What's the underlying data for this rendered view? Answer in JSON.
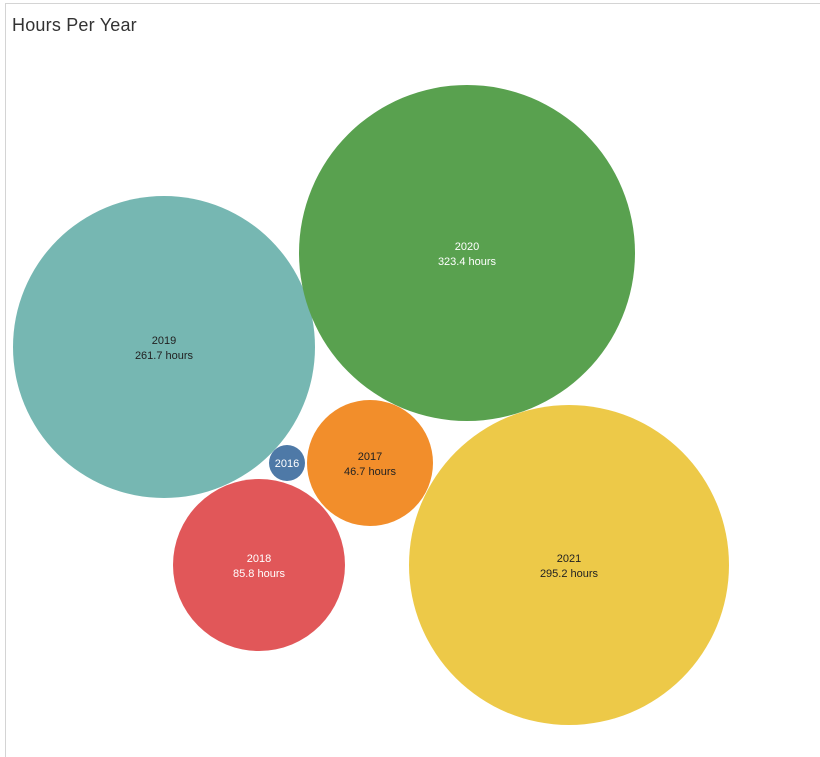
{
  "chart_data": {
    "type": "bubble",
    "title": "Hours Per Year",
    "unit_label": "hours",
    "bubbles": [
      {
        "category": "2016",
        "value": 5.0,
        "color": "#4e79a7",
        "label_color": "#ffffff",
        "value_label": ""
      },
      {
        "category": "2017",
        "value": 46.7,
        "color": "#f28e2b",
        "label_color": "#222222",
        "value_label": "46.7 hours"
      },
      {
        "category": "2018",
        "value": 85.8,
        "color": "#e15759",
        "label_color": "#ffffff",
        "value_label": "85.8 hours"
      },
      {
        "category": "2019",
        "value": 261.7,
        "color": "#76b7b2",
        "label_color": "#222222",
        "value_label": "261.7 hours"
      },
      {
        "category": "2020",
        "value": 323.4,
        "color": "#59a14f",
        "label_color": "#ffffff",
        "value_label": "323.4 hours"
      },
      {
        "category": "2021",
        "value": 295.2,
        "color": "#edc948",
        "label_color": "#222222",
        "value_label": "295.2 hours"
      }
    ]
  }
}
